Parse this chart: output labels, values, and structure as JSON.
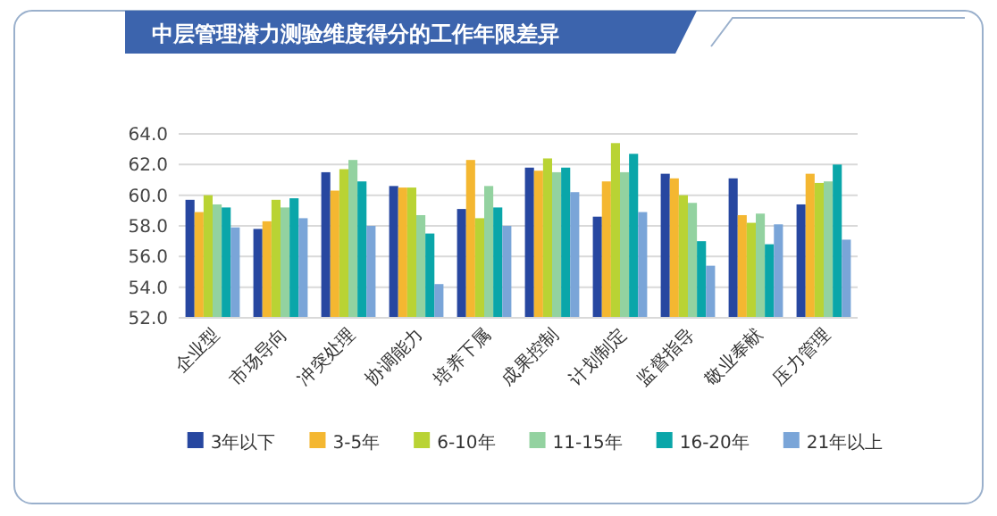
{
  "chart_data": {
    "type": "bar",
    "title": "中层管理潜力测验维度得分的工作年限差异",
    "categories": [
      "企业型",
      "市场导向",
      "冲突处理",
      "协调能力",
      "培养下属",
      "成果控制",
      "计划制定",
      "监督指导",
      "敬业奉献",
      "压力管理"
    ],
    "series": [
      {
        "name": "3年以下",
        "color": "#2747a0",
        "values": [
          59.7,
          57.8,
          61.5,
          60.6,
          59.1,
          61.8,
          58.6,
          61.4,
          61.1,
          59.4
        ]
      },
      {
        "name": "3-5年",
        "color": "#f4b731",
        "values": [
          58.9,
          58.3,
          60.3,
          60.5,
          62.3,
          61.6,
          60.9,
          61.1,
          58.7,
          61.4
        ]
      },
      {
        "name": "6-10年",
        "color": "#b9d334",
        "values": [
          60.0,
          59.7,
          61.7,
          60.5,
          58.5,
          62.4,
          63.4,
          60.0,
          58.2,
          60.8
        ]
      },
      {
        "name": "11-15年",
        "color": "#93d2a0",
        "values": [
          59.4,
          59.2,
          62.3,
          58.7,
          60.6,
          61.5,
          61.5,
          59.5,
          58.8,
          60.9
        ]
      },
      {
        "name": "16-20年",
        "color": "#0aa6a9",
        "values": [
          59.2,
          59.8,
          60.9,
          57.5,
          59.2,
          61.8,
          62.7,
          57.0,
          56.8,
          62.0
        ]
      },
      {
        "name": "21年以上",
        "color": "#7aa5d8",
        "values": [
          57.9,
          58.5,
          58.0,
          54.2,
          58.0,
          60.2,
          58.9,
          55.4,
          58.1,
          57.1
        ]
      }
    ],
    "ylim": [
      52,
      64
    ],
    "yticks": [
      {
        "value": 52,
        "label": "52.0"
      },
      {
        "value": 54,
        "label": "54.0"
      },
      {
        "value": 56,
        "label": "56.0"
      },
      {
        "value": 58,
        "label": "58.0"
      },
      {
        "value": 60,
        "label": "60.0"
      },
      {
        "value": 62,
        "label": "62.0"
      },
      {
        "value": 64,
        "label": "64.0"
      }
    ],
    "grid": "y",
    "legend": "bottom"
  }
}
